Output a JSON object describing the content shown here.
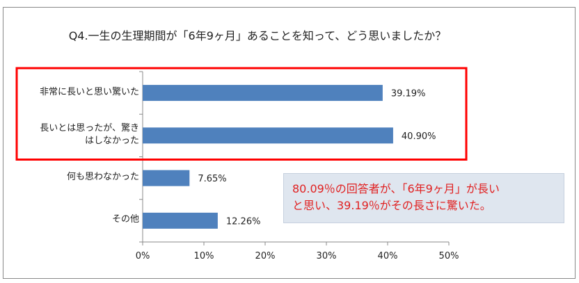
{
  "chart_data": {
    "type": "bar",
    "orientation": "horizontal",
    "title": "Q4.一生の生理期間が「6年9ヶ月」あることを知って、どう思いましたか？",
    "categories": [
      "非常に長いと思い驚いた",
      "長いとは思ったが、驚きはしなかった",
      "何も思わなかった",
      "その他"
    ],
    "category_lines": [
      [
        "非常に長いと思い驚いた"
      ],
      [
        "長いとは思ったが、驚き",
        "はしなかった"
      ],
      [
        "何も思わなかった"
      ],
      [
        "その他"
      ]
    ],
    "values": [
      39.19,
      40.9,
      7.65,
      12.26
    ],
    "value_labels": [
      "39.19%",
      "40.90%",
      "7.65%",
      "12.26%"
    ],
    "xlim": [
      0,
      50
    ],
    "xticks": [
      "0%",
      "10%",
      "20%",
      "30%",
      "40%",
      "50%"
    ],
    "bar_color": "#4f81bd",
    "highlight_color": "#ff0000",
    "highlighted_categories": [
      0,
      1
    ],
    "grid": false
  },
  "annotation": {
    "line1": "80.09％の回答者が、「6年9ヶ月」が長い",
    "line2": "と思い、39.19％がその長さに驚いた。"
  }
}
